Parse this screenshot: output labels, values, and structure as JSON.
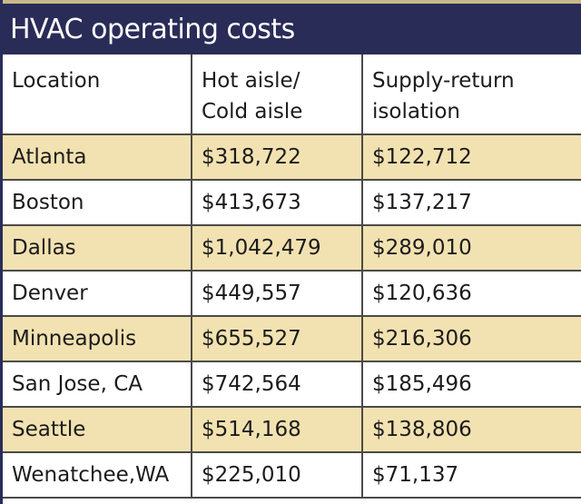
{
  "title": "HVAC operating costs",
  "columns": {
    "location": "Location",
    "hot_aisle": [
      "Hot aisle/",
      "Cold aisle"
    ],
    "supply_return": [
      "Supply-return",
      "isolation"
    ]
  },
  "rows": [
    {
      "location": "Atlanta",
      "hot_aisle": "$318,722",
      "supply_return": "$122,712"
    },
    {
      "location": "Boston",
      "hot_aisle": "$413,673",
      "supply_return": "$137,217"
    },
    {
      "location": "Dallas",
      "hot_aisle": "$1,042,479",
      "supply_return": "$289,010"
    },
    {
      "location": "Denver",
      "hot_aisle": "$449,557",
      "supply_return": "$120,636"
    },
    {
      "location": "Minneapolis",
      "hot_aisle": "$655,527",
      "supply_return": "$216,306"
    },
    {
      "location": "San Jose, CA",
      "hot_aisle": "$742,564",
      "supply_return": "$185,496"
    },
    {
      "location": "Seattle",
      "hot_aisle": "$514,168",
      "supply_return": "$138,806"
    },
    {
      "location": "Wenatchee,WA",
      "hot_aisle": "$225,010",
      "supply_return": "$71,137"
    }
  ],
  "colors": {
    "title_bg": "#2a2c58",
    "shaded_row": "#f2e2b1"
  }
}
